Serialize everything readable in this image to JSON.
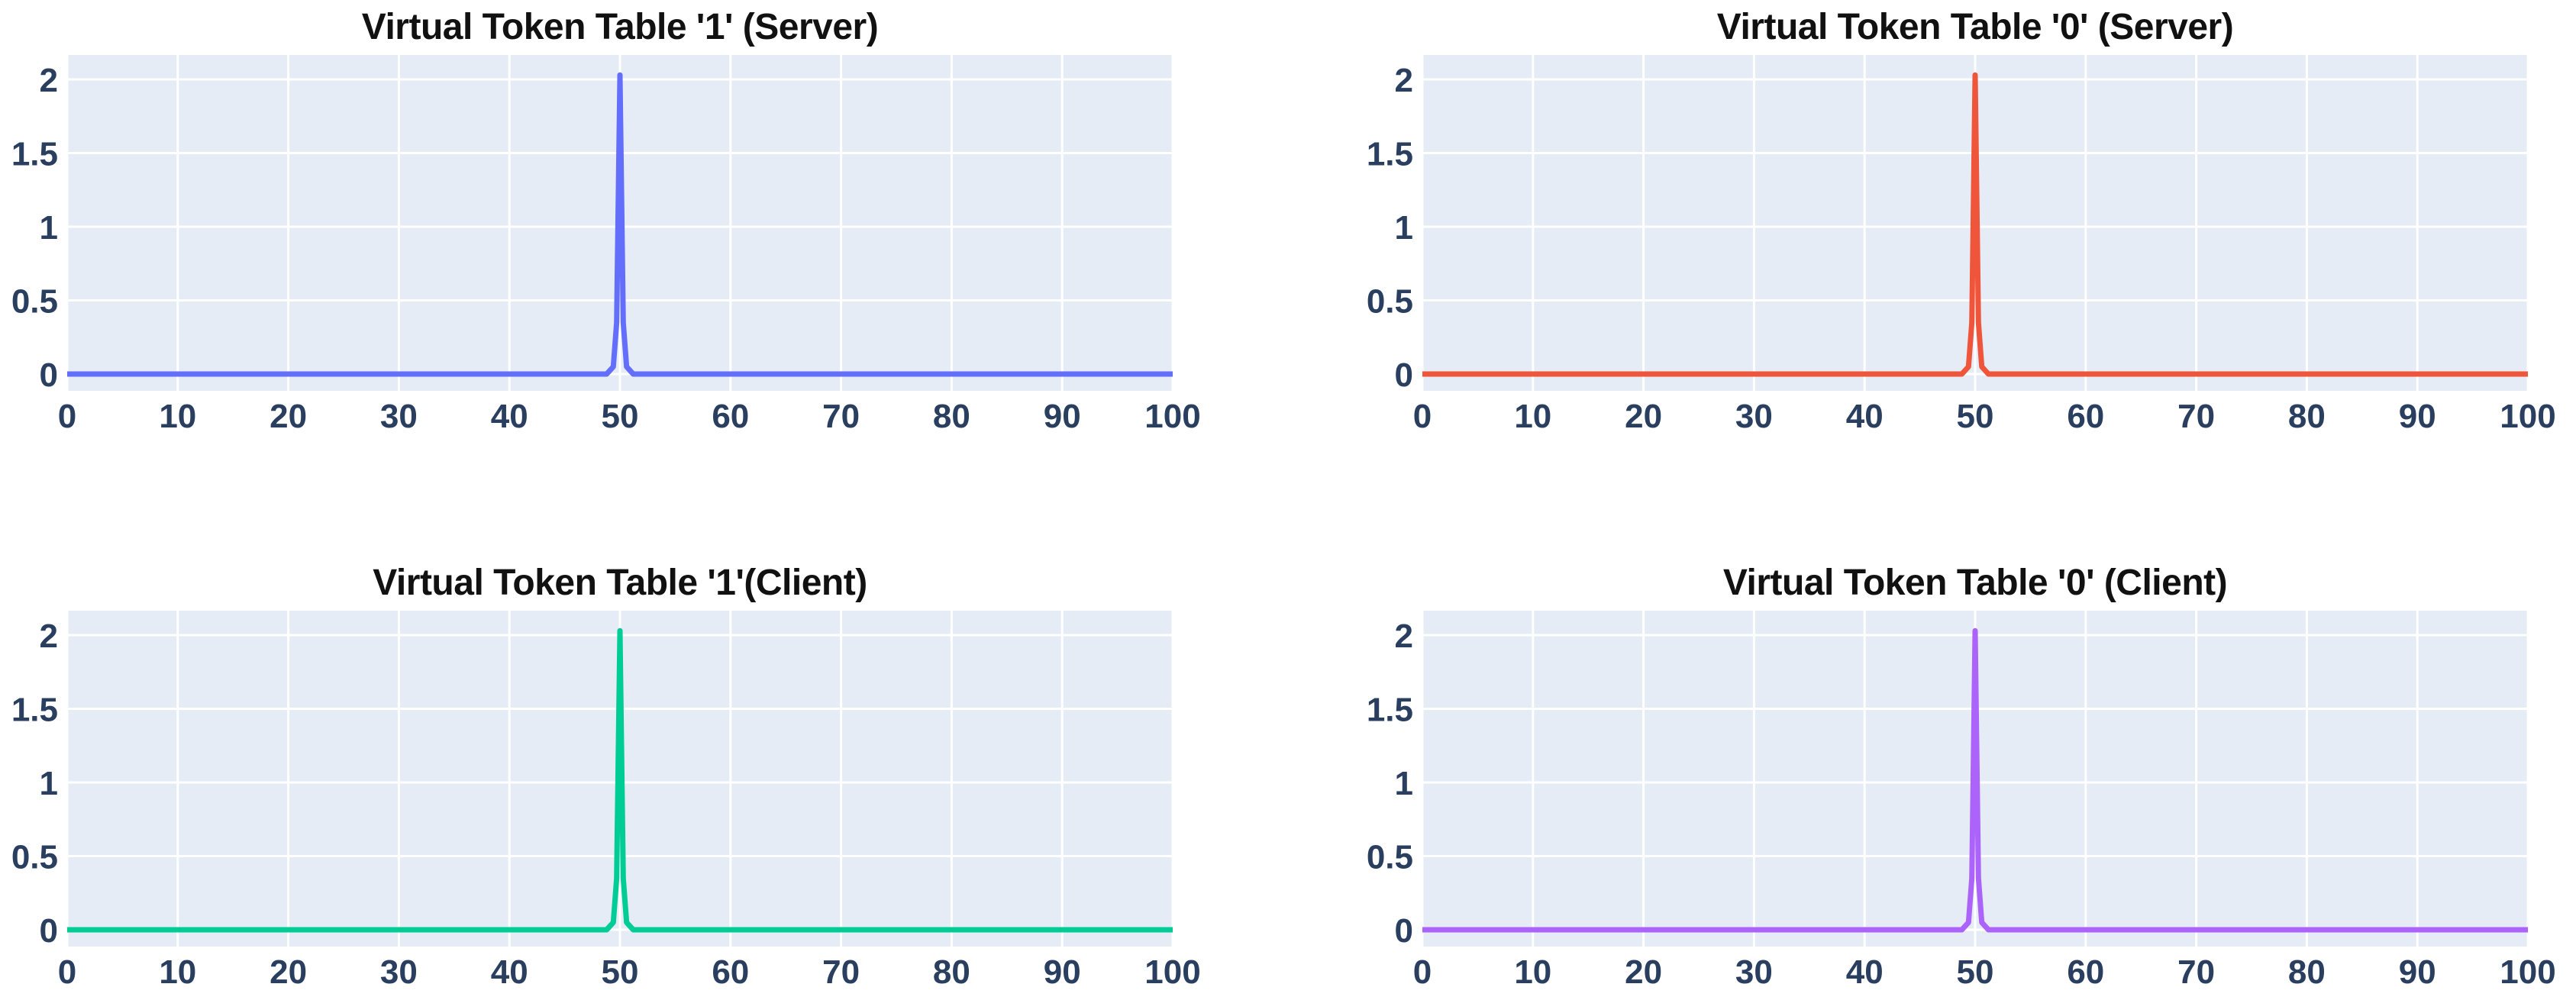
{
  "figure": {
    "background": "#ffffff",
    "plot_background": "#e5ecf6",
    "grid_color": "#ffffff",
    "tick_color": "#2a3f5f",
    "title_color": "#111111"
  },
  "chart_data": [
    {
      "type": "line",
      "title": "Virtual Token Table '1' (Server)",
      "line_color": "#636EFA",
      "xlabel": "",
      "ylabel": "",
      "xlim": [
        0,
        100
      ],
      "ylim": [
        -0.11,
        2.17
      ],
      "x_ticks": [
        0,
        10,
        20,
        30,
        40,
        50,
        60,
        70,
        80,
        90,
        100
      ],
      "y_ticks": [
        0,
        0.5,
        1,
        1.5,
        2
      ],
      "grid": true,
      "legend": "none",
      "baseline_value": 0,
      "peak": {
        "x": 50,
        "y": 2.03
      },
      "points": [
        [
          0,
          0
        ],
        [
          48.8,
          0
        ],
        [
          49.4,
          0.05
        ],
        [
          49.7,
          0.35
        ],
        [
          50,
          2.03
        ],
        [
          50.3,
          0.35
        ],
        [
          50.6,
          0.05
        ],
        [
          51.2,
          0
        ],
        [
          100,
          0
        ]
      ]
    },
    {
      "type": "line",
      "title": "Virtual Token Table '0' (Server)",
      "line_color": "#EF553B",
      "xlabel": "",
      "ylabel": "",
      "xlim": [
        0,
        100
      ],
      "ylim": [
        -0.11,
        2.17
      ],
      "x_ticks": [
        0,
        10,
        20,
        30,
        40,
        50,
        60,
        70,
        80,
        90,
        100
      ],
      "y_ticks": [
        0,
        0.5,
        1,
        1.5,
        2
      ],
      "grid": true,
      "legend": "none",
      "baseline_value": 0,
      "peak": {
        "x": 50,
        "y": 2.03
      },
      "points": [
        [
          0,
          0
        ],
        [
          48.8,
          0
        ],
        [
          49.4,
          0.05
        ],
        [
          49.7,
          0.35
        ],
        [
          50,
          2.03
        ],
        [
          50.3,
          0.35
        ],
        [
          50.6,
          0.05
        ],
        [
          51.2,
          0
        ],
        [
          100,
          0
        ]
      ]
    },
    {
      "type": "line",
      "title": "Virtual Token Table '1'(Client)",
      "line_color": "#00CC96",
      "xlabel": "",
      "ylabel": "",
      "xlim": [
        0,
        100
      ],
      "ylim": [
        -0.11,
        2.17
      ],
      "x_ticks": [
        0,
        10,
        20,
        30,
        40,
        50,
        60,
        70,
        80,
        90,
        100
      ],
      "y_ticks": [
        0,
        0.5,
        1,
        1.5,
        2
      ],
      "grid": true,
      "legend": "none",
      "baseline_value": 0,
      "peak": {
        "x": 50,
        "y": 2.03
      },
      "points": [
        [
          0,
          0
        ],
        [
          48.8,
          0
        ],
        [
          49.4,
          0.05
        ],
        [
          49.7,
          0.35
        ],
        [
          50,
          2.03
        ],
        [
          50.3,
          0.35
        ],
        [
          50.6,
          0.05
        ],
        [
          51.2,
          0
        ],
        [
          100,
          0
        ]
      ]
    },
    {
      "type": "line",
      "title": "Virtual Token Table '0' (Client)",
      "line_color": "#AB63FA",
      "xlabel": "",
      "ylabel": "",
      "xlim": [
        0,
        100
      ],
      "ylim": [
        -0.11,
        2.17
      ],
      "x_ticks": [
        0,
        10,
        20,
        30,
        40,
        50,
        60,
        70,
        80,
        90,
        100
      ],
      "y_ticks": [
        0,
        0.5,
        1,
        1.5,
        2
      ],
      "grid": true,
      "legend": "none",
      "baseline_value": 0,
      "peak": {
        "x": 50,
        "y": 2.03
      },
      "points": [
        [
          0,
          0
        ],
        [
          48.8,
          0
        ],
        [
          49.4,
          0.05
        ],
        [
          49.7,
          0.35
        ],
        [
          50,
          2.03
        ],
        [
          50.3,
          0.35
        ],
        [
          50.6,
          0.05
        ],
        [
          51.2,
          0
        ],
        [
          100,
          0
        ]
      ]
    }
  ]
}
